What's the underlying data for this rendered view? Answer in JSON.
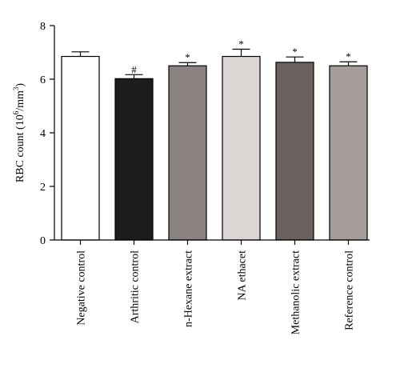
{
  "chart_data": {
    "type": "bar",
    "ylabel": "RBC count (10",
    "ylabel_sup1": "6",
    "ylabel_mid": "/mm",
    "ylabel_sup2": "3",
    "ylabel_end": ")",
    "ylim": [
      0,
      8
    ],
    "yticks": [
      "0",
      "2",
      "4",
      "6",
      "8"
    ],
    "categories": [
      "Negative control",
      "Arthritic control",
      "n-Hexane extract",
      "NA ethacet",
      "Methanolic extract",
      "Reference control"
    ],
    "values": [
      6.85,
      6.02,
      6.5,
      6.85,
      6.63,
      6.5
    ],
    "errors": [
      0.17,
      0.15,
      0.12,
      0.27,
      0.2,
      0.15
    ],
    "significance": [
      "",
      "#",
      "*",
      "*",
      "*",
      "*"
    ],
    "colors": [
      "#ffffff",
      "#1c1c1a",
      "#8a8280",
      "#dbd5d3",
      "#6a605d",
      "#a69d9b"
    ]
  }
}
